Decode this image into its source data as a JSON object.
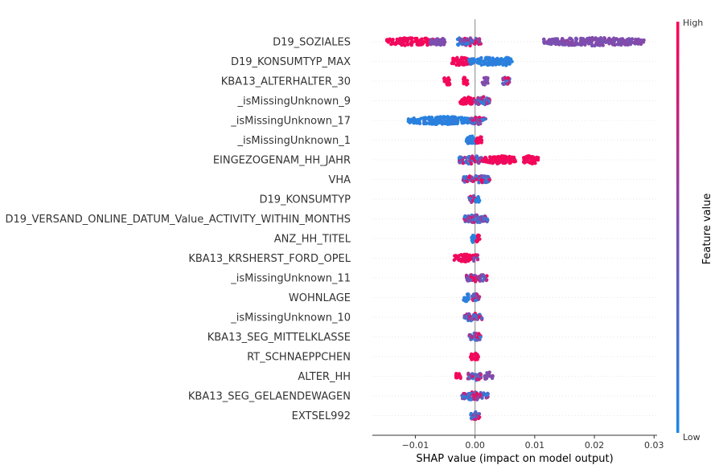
{
  "chart_data": {
    "type": "scatter",
    "subtype": "shap-beeswarm",
    "xlabel": "SHAP value (impact on model output)",
    "xlim": [
      -0.0172,
      0.0305
    ],
    "xticks": [
      -0.01,
      0.0,
      0.01,
      0.02,
      0.03
    ],
    "xtick_labels": [
      "−0.01",
      "0.00",
      "0.01",
      "0.02",
      "0.03"
    ],
    "zero_line": true,
    "colorbar": {
      "title": "Feature value",
      "high_label": "High",
      "low_label": "Low",
      "low_color": "#1e88e5",
      "mid_color": "#7b4fb0",
      "high_color": "#ff0052"
    },
    "features": [
      {
        "name": "D19_SOZIALES",
        "clusters": [
          {
            "from": -0.0148,
            "to": -0.0062,
            "color": "high"
          },
          {
            "from": -0.0075,
            "to": -0.005,
            "color": "mid"
          },
          {
            "from": -0.003,
            "to": -0.0025,
            "color": "low"
          },
          {
            "from": -0.0025,
            "to": 0.001,
            "color": "mix"
          },
          {
            "from": 0.0115,
            "to": 0.0283,
            "color": "mid"
          }
        ]
      },
      {
        "name": "D19_KONSUMTYP_MAX",
        "clusters": [
          {
            "from": -0.004,
            "to": -0.001,
            "color": "high"
          },
          {
            "from": -0.001,
            "to": 0.0045,
            "color": "low"
          },
          {
            "from": 0.004,
            "to": 0.0062,
            "color": "low"
          }
        ]
      },
      {
        "name": "KBA13_ALTERHALTER_30",
        "clusters": [
          {
            "from": -0.0052,
            "to": -0.004,
            "color": "high"
          },
          {
            "from": -0.002,
            "to": -0.0012,
            "color": "high"
          },
          {
            "from": 0.0012,
            "to": 0.0022,
            "color": "mid"
          },
          {
            "from": 0.0046,
            "to": 0.0058,
            "color": "mix"
          }
        ]
      },
      {
        "name": "_isMissingUnknown_9",
        "clusters": [
          {
            "from": -0.0025,
            "to": -0.0002,
            "color": "high"
          },
          {
            "from": -0.0002,
            "to": 0.0025,
            "color": "mix"
          }
        ]
      },
      {
        "name": "_isMissingUnknown_17",
        "clusters": [
          {
            "from": -0.0112,
            "to": -0.0008,
            "color": "low"
          },
          {
            "from": -0.0008,
            "to": 0.0018,
            "color": "mix"
          }
        ]
      },
      {
        "name": "_isMissingUnknown_1",
        "clusters": [
          {
            "from": -0.0015,
            "to": 0.0002,
            "color": "low"
          },
          {
            "from": 0.0002,
            "to": 0.0012,
            "color": "high"
          }
        ]
      },
      {
        "name": "EINGEZOGENAM_HH_JAHR",
        "clusters": [
          {
            "from": -0.003,
            "to": 0.0015,
            "color": "mix"
          },
          {
            "from": 0.0015,
            "to": 0.0068,
            "color": "high"
          },
          {
            "from": 0.008,
            "to": 0.0106,
            "color": "high"
          }
        ]
      },
      {
        "name": "VHA",
        "clusters": [
          {
            "from": -0.002,
            "to": 0.0025,
            "color": "mix"
          }
        ]
      },
      {
        "name": "D19_KONSUMTYP",
        "clusters": [
          {
            "from": -0.001,
            "to": 0.0001,
            "color": "mix"
          },
          {
            "from": 0.0001,
            "to": 0.0008,
            "color": "low"
          }
        ]
      },
      {
        "name": "D19_VERSAND_ONLINE_DATUM_Value_ACTIVITY_WITHIN_MONTHS",
        "clusters": [
          {
            "from": -0.0018,
            "to": 0.0022,
            "color": "mix"
          }
        ]
      },
      {
        "name": "ANZ_HH_TITEL",
        "clusters": [
          {
            "from": -0.0006,
            "to": 0.0002,
            "color": "low"
          },
          {
            "from": 0.0002,
            "to": 0.0008,
            "color": "high"
          }
        ]
      },
      {
        "name": "KBA13_KRSHERST_FORD_OPEL",
        "clusters": [
          {
            "from": -0.0035,
            "to": -0.0002,
            "color": "high"
          },
          {
            "from": -0.0002,
            "to": 0.0005,
            "color": "mix"
          }
        ]
      },
      {
        "name": "_isMissingUnknown_11",
        "clusters": [
          {
            "from": -0.0015,
            "to": 0.002,
            "color": "mix"
          }
        ]
      },
      {
        "name": "WOHNLAGE",
        "clusters": [
          {
            "from": -0.002,
            "to": -0.001,
            "color": "low"
          },
          {
            "from": -0.0005,
            "to": 0.0008,
            "color": "mix"
          }
        ]
      },
      {
        "name": "_isMissingUnknown_10",
        "clusters": [
          {
            "from": -0.0018,
            "to": 0.0012,
            "color": "mix"
          }
        ]
      },
      {
        "name": "KBA13_SEG_MITTELKLASSE",
        "clusters": [
          {
            "from": -0.001,
            "to": 0.001,
            "color": "mix"
          }
        ]
      },
      {
        "name": "RT_SCHNAEPPCHEN",
        "clusters": [
          {
            "from": -0.0008,
            "to": 0.0006,
            "color": "high"
          }
        ]
      },
      {
        "name": "ALTER_HH",
        "clusters": [
          {
            "from": -0.0032,
            "to": -0.0024,
            "color": "high"
          },
          {
            "from": -0.0012,
            "to": 0.001,
            "color": "mix"
          },
          {
            "from": 0.0016,
            "to": 0.003,
            "color": "mid"
          }
        ]
      },
      {
        "name": "KBA13_SEG_GELAENDEWAGEN",
        "clusters": [
          {
            "from": -0.0022,
            "to": 0.0022,
            "color": "mix"
          }
        ]
      },
      {
        "name": "EXTSEL992",
        "clusters": [
          {
            "from": -0.0008,
            "to": 0.0008,
            "color": "mix"
          }
        ]
      }
    ]
  }
}
